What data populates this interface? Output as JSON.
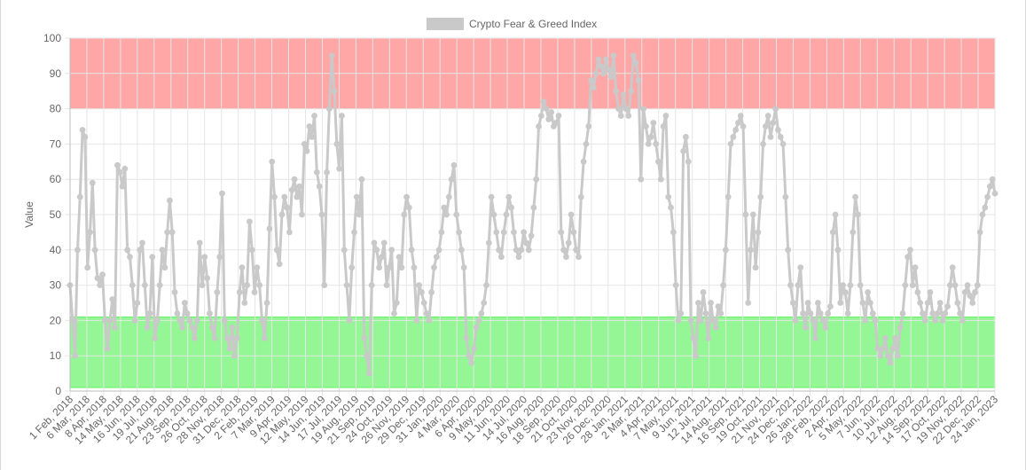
{
  "chart_data": {
    "type": "line",
    "title": "",
    "ylabel": "Value",
    "xlabel": "",
    "ylim": [
      0,
      100
    ],
    "yticks": [
      0,
      10,
      20,
      30,
      40,
      50,
      60,
      70,
      80,
      90,
      100
    ],
    "legend": {
      "position": "top-center",
      "label": "Crypto Fear & Greed Index"
    },
    "colors": {
      "series": "#c9c9c9",
      "greed_band": "#ff6b6b",
      "fear_band": "#4cf04c",
      "grid": "#e6e6e6",
      "axis_text": "#666666"
    },
    "bands": [
      {
        "name": "greed",
        "from": 80,
        "to": 100
      },
      {
        "name": "fear",
        "from": 1,
        "to": 21
      }
    ],
    "x_tick_labels": [
      "1 Feb, 2018",
      "6 Mar, 2018",
      "8 Apr, 2018",
      "14 May, 2018",
      "16 Jun, 2018",
      "19 Jul, 2018",
      "21 Aug, 2018",
      "23 Sep, 2018",
      "26 Oct, 2018",
      "28 Nov, 2018",
      "31 Dec, 2018",
      "2 Feb, 2019",
      "7 Mar, 2019",
      "9 Apr, 2019",
      "12 May, 2019",
      "14 Jun, 2019",
      "17 Jul, 2019",
      "19 Aug, 2019",
      "21 Sep, 2019",
      "24 Oct, 2019",
      "26 Nov, 2019",
      "29 Dec, 2019",
      "31 Jan, 2020",
      "4 Mar, 2020",
      "6 Apr, 2020",
      "9 May, 2020",
      "11 Jun, 2020",
      "14 Jul, 2020",
      "16 Aug, 2020",
      "18 Sep, 2020",
      "21 Oct, 2020",
      "23 Nov, 2020",
      "26 Dec, 2020",
      "28 Jan, 2021",
      "2 Mar, 2021",
      "4 Apr, 2021",
      "7 May, 2021",
      "9 Jun, 2021",
      "12 Jul, 2021",
      "14 Aug, 2021",
      "16 Sep, 2021",
      "19 Oct, 2021",
      "21 Nov, 2021",
      "24 Dec, 2021",
      "26 Jan, 2022",
      "28 Feb, 2022",
      "2 Apr, 2022",
      "5 May, 2022",
      "7 Jun, 2022",
      "10 Jul, 2022",
      "12 Aug, 2022",
      "14 Sep, 2022",
      "17 Oct, 2022",
      "19 Nov, 2022",
      "22 Dec, 2022",
      "24 Jan, 2023"
    ],
    "series": [
      {
        "name": "Crypto Fear & Greed Index",
        "values": [
          30,
          20,
          10,
          40,
          55,
          74,
          72,
          35,
          45,
          59,
          40,
          32,
          30,
          33,
          20,
          12,
          20,
          26,
          18,
          64,
          62,
          58,
          63,
          40,
          38,
          30,
          20,
          25,
          40,
          42,
          30,
          18,
          22,
          38,
          15,
          20,
          30,
          40,
          35,
          45,
          54,
          45,
          28,
          22,
          20,
          18,
          25,
          22,
          20,
          18,
          15,
          20,
          42,
          30,
          38,
          32,
          22,
          18,
          15,
          28,
          38,
          56,
          20,
          15,
          12,
          18,
          10,
          15,
          28,
          35,
          25,
          30,
          48,
          40,
          28,
          35,
          30,
          20,
          15,
          25,
          46,
          65,
          55,
          40,
          36,
          50,
          55,
          52,
          45,
          57,
          60,
          55,
          58,
          50,
          70,
          68,
          75,
          72,
          78,
          62,
          58,
          50,
          30,
          62,
          80,
          95,
          85,
          70,
          63,
          78,
          40,
          30,
          20,
          35,
          45,
          55,
          50,
          60,
          15,
          10,
          5,
          30,
          42,
          40,
          35,
          38,
          42,
          30,
          35,
          40,
          22,
          25,
          38,
          35,
          50,
          55,
          52,
          40,
          35,
          20,
          30,
          28,
          25,
          22,
          20,
          28,
          35,
          38,
          40,
          45,
          52,
          50,
          55,
          60,
          64,
          50,
          45,
          40,
          35,
          15,
          10,
          8,
          12,
          18,
          20,
          22,
          25,
          30,
          42,
          55,
          50,
          45,
          40,
          38,
          45,
          50,
          55,
          52,
          45,
          40,
          38,
          40,
          45,
          42,
          40,
          44,
          52,
          60,
          75,
          78,
          82,
          80,
          77,
          79,
          75,
          76,
          78,
          45,
          40,
          38,
          42,
          50,
          45,
          40,
          38,
          55,
          65,
          70,
          75,
          88,
          86,
          90,
          94,
          92,
          90,
          94,
          91,
          89,
          95,
          85,
          80,
          78,
          84,
          80,
          78,
          85,
          95,
          93,
          88,
          60,
          80,
          75,
          70,
          72,
          76,
          70,
          65,
          60,
          75,
          78,
          55,
          52,
          45,
          30,
          20,
          22,
          68,
          72,
          65,
          20,
          15,
          10,
          25,
          20,
          28,
          22,
          15,
          25,
          20,
          18,
          24,
          22,
          30,
          40,
          55,
          70,
          72,
          74,
          76,
          78,
          75,
          50,
          25,
          40,
          50,
          35,
          45,
          55,
          70,
          75,
          78,
          72,
          76,
          80,
          74,
          72,
          70,
          55,
          40,
          30,
          25,
          20,
          30,
          35,
          22,
          18,
          25,
          22,
          20,
          15,
          25,
          22,
          20,
          18,
          22,
          24,
          45,
          50,
          40,
          25,
          30,
          28,
          22,
          30,
          45,
          55,
          50,
          30,
          25,
          20,
          28,
          25,
          22,
          20,
          12,
          10,
          12,
          15,
          10,
          8,
          12,
          15,
          10,
          18,
          22,
          30,
          38,
          40,
          30,
          35,
          28,
          25,
          22,
          20,
          25,
          28,
          22,
          20,
          22,
          25,
          20,
          22,
          24,
          30,
          35,
          30,
          25,
          22,
          20,
          28,
          30,
          27,
          25,
          28,
          30,
          45,
          50,
          52,
          55,
          58,
          60,
          56
        ]
      }
    ]
  }
}
